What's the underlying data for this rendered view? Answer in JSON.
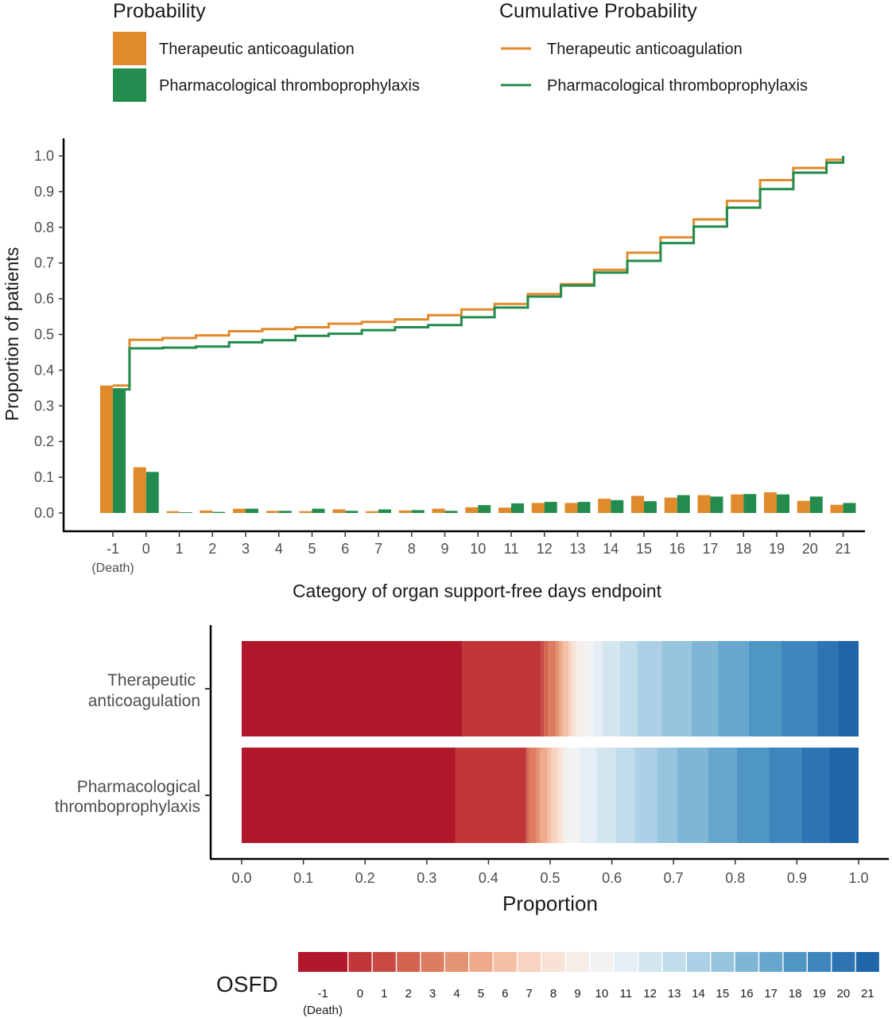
{
  "colors": {
    "therapeutic": "#E08A2C",
    "pharmacological": "#238B4E",
    "axis": "#000000",
    "tick_text": "#4D4D4D"
  },
  "legend": {
    "probability_title": "Probability",
    "cumulative_title": "Cumulative Probability",
    "items": [
      "Therapeutic anticoagulation",
      "Pharmacological thromboprophylaxis"
    ]
  },
  "chart_data": [
    {
      "type": "bar",
      "overlay": "step-line cumulative probability",
      "xlabel": "Category of organ support-free days endpoint",
      "ylabel": "Proportion of patients",
      "ylim": [
        0,
        1.0
      ],
      "yticks": [
        "0.0",
        "0.1",
        "0.2",
        "0.3",
        "0.4",
        "0.5",
        "0.6",
        "0.7",
        "0.8",
        "0.9",
        "1.0"
      ],
      "categories": [
        "-1",
        "0",
        "1",
        "2",
        "3",
        "4",
        "5",
        "6",
        "7",
        "8",
        "9",
        "10",
        "11",
        "12",
        "13",
        "14",
        "15",
        "16",
        "17",
        "18",
        "19",
        "20",
        "21"
      ],
      "category_sublabel": {
        "index": 0,
        "text": "(Death)"
      },
      "grid": false,
      "series": [
        {
          "name": "Therapeutic anticoagulation",
          "values": [
            0.357,
            0.128,
            0.005,
            0.007,
            0.012,
            0.006,
            0.005,
            0.01,
            0.005,
            0.007,
            0.012,
            0.016,
            0.015,
            0.028,
            0.028,
            0.04,
            0.048,
            0.043,
            0.05,
            0.052,
            0.058,
            0.034,
            0.023
          ],
          "cumulative": [
            0.357,
            0.485,
            0.49,
            0.497,
            0.509,
            0.515,
            0.52,
            0.53,
            0.535,
            0.542,
            0.554,
            0.57,
            0.585,
            0.613,
            0.641,
            0.681,
            0.729,
            0.772,
            0.822,
            0.874,
            0.932,
            0.966,
            0.989
          ]
        },
        {
          "name": "Pharmacological thromboprophylaxis",
          "values": [
            0.346,
            0.115,
            0.002,
            0.003,
            0.012,
            0.006,
            0.012,
            0.006,
            0.01,
            0.008,
            0.006,
            0.022,
            0.027,
            0.031,
            0.031,
            0.036,
            0.033,
            0.05,
            0.046,
            0.053,
            0.052,
            0.046,
            0.028
          ],
          "cumulative": [
            0.346,
            0.461,
            0.463,
            0.466,
            0.478,
            0.484,
            0.496,
            0.502,
            0.512,
            0.52,
            0.526,
            0.548,
            0.575,
            0.606,
            0.637,
            0.673,
            0.706,
            0.756,
            0.802,
            0.855,
            0.907,
            0.953,
            0.981
          ]
        }
      ]
    },
    {
      "type": "bar",
      "orientation": "horizontal-stacked",
      "xlabel": "Proportion",
      "xlim": [
        0,
        1.0
      ],
      "xticks": [
        "0.0",
        "0.1",
        "0.2",
        "0.3",
        "0.4",
        "0.5",
        "0.6",
        "0.7",
        "0.8",
        "0.9",
        "1.0"
      ],
      "rows": [
        {
          "label_lines": [
            "Therapeutic",
            "anticoagulation"
          ],
          "segments": [
            0.357,
            0.128,
            0.005,
            0.007,
            0.012,
            0.006,
            0.005,
            0.01,
            0.005,
            0.007,
            0.012,
            0.016,
            0.015,
            0.028,
            0.028,
            0.04,
            0.048,
            0.043,
            0.05,
            0.052,
            0.058,
            0.034,
            0.023
          ]
        },
        {
          "label_lines": [
            "Pharmacological",
            "thromboprophylaxis"
          ],
          "segments": [
            0.346,
            0.115,
            0.002,
            0.003,
            0.012,
            0.006,
            0.012,
            0.006,
            0.01,
            0.008,
            0.006,
            0.022,
            0.027,
            0.031,
            0.031,
            0.036,
            0.033,
            0.05,
            0.046,
            0.053,
            0.052,
            0.046,
            0.028
          ]
        }
      ]
    }
  ],
  "osfd_legend": {
    "title": "OSFD",
    "labels": [
      "-1",
      "0",
      "1",
      "2",
      "3",
      "4",
      "5",
      "6",
      "7",
      "8",
      "9",
      "10",
      "11",
      "12",
      "13",
      "14",
      "15",
      "16",
      "17",
      "18",
      "19",
      "20",
      "21"
    ],
    "death_sublabel": "(Death)",
    "colors": [
      "#B2182B",
      "#C13639",
      "#CA4A43",
      "#D4634F",
      "#DD7C60",
      "#E59473",
      "#EEAA8A",
      "#F4C0A6",
      "#F7D3C0",
      "#F8E2D6",
      "#F6EDE8",
      "#F2F2F2",
      "#E4EEF4",
      "#D3E6F0",
      "#C1DDEB",
      "#ACD0E5",
      "#97C4DF",
      "#7FB6D6",
      "#67A6CD",
      "#5096C4",
      "#3E86BC",
      "#2D75B2",
      "#1F65AA"
    ]
  }
}
